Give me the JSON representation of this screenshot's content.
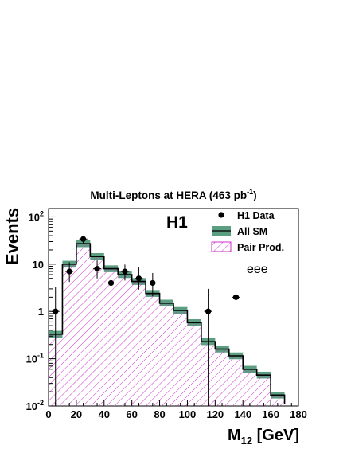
{
  "chart_data": {
    "type": "bar",
    "title": "Multi-Leptons at HERA (463 pb",
    "title_sup": "-1",
    "title_close": ")",
    "experiment_label": "H1",
    "channel_label": "eee",
    "ylabel": "Events",
    "xlabel_main": "M",
    "xlabel_sub": "12",
    "xlabel_unit": " [GeV]",
    "x_range": [
      0,
      180
    ],
    "y_range": [
      0.01,
      150
    ],
    "y_scale": "log",
    "grid": false,
    "legend_position": "top-right",
    "x_ticks": [
      "0",
      "20",
      "40",
      "60",
      "80",
      "100",
      "120",
      "140",
      "160",
      "180"
    ],
    "y_ticks": [
      {
        "base": "10",
        "exp": "-2",
        "value": 0.01
      },
      {
        "base": "10",
        "exp": "-1",
        "value": 0.1
      },
      {
        "base": "1",
        "exp": "",
        "value": 1
      },
      {
        "base": "10",
        "exp": "",
        "value": 10
      },
      {
        "base": "10",
        "exp": "2",
        "value": 100
      }
    ],
    "bin_edges": [
      0,
      10,
      20,
      30,
      40,
      50,
      60,
      70,
      80,
      90,
      100,
      110,
      120,
      130,
      140,
      150,
      160,
      170
    ],
    "series": [
      {
        "name": "All SM",
        "kind": "histogram-band",
        "color": "#5c9e82",
        "values": [
          0.33,
          10,
          27,
          14.5,
          8,
          6,
          4.3,
          2.4,
          1.5,
          1.05,
          0.58,
          0.23,
          0.16,
          0.115,
          0.06,
          0.045,
          0.017,
          0.011
        ],
        "band_fraction": 0.18
      },
      {
        "name": "Pair Prod.",
        "kind": "hatched-histogram",
        "color": "#cc33cc",
        "values": [
          0.33,
          10,
          27,
          14.5,
          8,
          6,
          4.3,
          2.4,
          1.5,
          1.05,
          0.58,
          0.23,
          0.16,
          0.115,
          0.06,
          0.045,
          0.017,
          0.011
        ]
      },
      {
        "name": "H1 Data",
        "kind": "points",
        "color": "#000000",
        "points": [
          {
            "x": 5,
            "y": 1,
            "lo": 0.0105,
            "hi": 3.3
          },
          {
            "x": 15,
            "y": 7,
            "lo": 4.2,
            "hi": 11
          },
          {
            "x": 25,
            "y": 34,
            "lo": 27,
            "hi": 40
          },
          {
            "x": 35,
            "y": 8,
            "lo": 5,
            "hi": 12
          },
          {
            "x": 45,
            "y": 4,
            "lo": 2.1,
            "hi": 7.5
          },
          {
            "x": 55,
            "y": 7,
            "lo": 4.5,
            "hi": 9.8
          },
          {
            "x": 65,
            "y": 5,
            "lo": 2.9,
            "hi": 8.6
          },
          {
            "x": 75,
            "y": 4,
            "lo": 2.1,
            "hi": 6.5
          },
          {
            "x": 115,
            "y": 1,
            "lo": 0.0105,
            "hi": 3.0
          },
          {
            "x": 135,
            "y": 2,
            "lo": 0.68,
            "hi": 3.4
          }
        ]
      }
    ],
    "legend": [
      {
        "label": "H1 Data",
        "marker": "point"
      },
      {
        "label": "All SM",
        "marker": "band"
      },
      {
        "label": "Pair Prod.",
        "marker": "hatch"
      }
    ]
  }
}
